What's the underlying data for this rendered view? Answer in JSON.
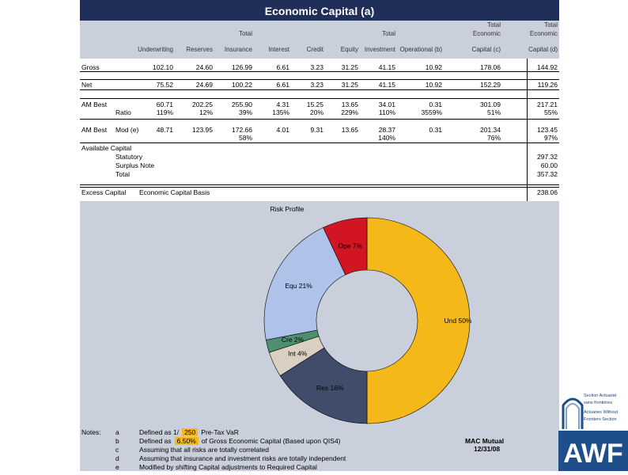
{
  "title": "Economic Capital (a)",
  "columns": [
    {
      "id": "und",
      "top1": "",
      "top2": "",
      "label": "Underwriting"
    },
    {
      "id": "res",
      "top1": "",
      "top2": "",
      "label": "Reserves"
    },
    {
      "id": "ins",
      "top1": "",
      "top2": "Total",
      "label": "Insurance"
    },
    {
      "id": "int",
      "top1": "",
      "top2": "",
      "label": "Interest"
    },
    {
      "id": "cre",
      "top1": "",
      "top2": "",
      "label": "Credit"
    },
    {
      "id": "equ",
      "top1": "",
      "top2": "",
      "label": "Equity"
    },
    {
      "id": "inv",
      "top1": "",
      "top2": "Total",
      "label": "Investment"
    },
    {
      "id": "ope",
      "top1": "",
      "top2": "",
      "label": "Operational (b)"
    },
    {
      "id": "tec",
      "top1": "Total",
      "top2": "Economic",
      "label": "Capital (c)"
    },
    {
      "id": "ted",
      "top1": "Total",
      "top2": "Economic",
      "label": "Capital (d)"
    }
  ],
  "rows": {
    "gross": {
      "label": "Gross",
      "values": [
        "102.10",
        "24.60",
        "126.99",
        "6.61",
        "3.23",
        "31.25",
        "41.15",
        "10.92",
        "178.06",
        "144.92"
      ]
    },
    "net": {
      "label": "Net",
      "values": [
        "75.52",
        "24.69",
        "100.22",
        "6.61",
        "3.23",
        "31.25",
        "41.15",
        "10.92",
        "152.29",
        "119.26"
      ]
    },
    "am_best": {
      "label": "AM Best",
      "values": [
        "60.71",
        "202.25",
        "255.90",
        "4.31",
        "15.25",
        "13.65",
        "34.01",
        "0.31",
        "301.09",
        "217.21"
      ]
    },
    "ratio": {
      "label": "Ratio",
      "values": [
        "119%",
        "12%",
        "39%",
        "135%",
        "20%",
        "229%",
        "110%",
        "3559%",
        "51%",
        "55%"
      ]
    },
    "am_best_mod": {
      "label": "AM Best",
      "sublabel": "Mod (e)",
      "values": [
        "48.71",
        "123.95",
        "172.66",
        "4.01",
        "9.31",
        "13.65",
        "28.37",
        "0.31",
        "201.34",
        "123.45"
      ]
    },
    "mod_pct": {
      "values": [
        "",
        "",
        "58%",
        "",
        "",
        "",
        "140%",
        "",
        "76%",
        "97%"
      ]
    }
  },
  "available": {
    "heading": "Available Capital",
    "items": [
      {
        "label": "Statutory",
        "value": "297.32"
      },
      {
        "label": "Surplus Note",
        "value": "60.00"
      },
      {
        "label": "Total",
        "value": "357.32"
      }
    ]
  },
  "excess": {
    "label": "Excess Capital",
    "basis": "Economic Capital Basis",
    "value": "238.06"
  },
  "chart_data": {
    "type": "pie",
    "title": "Risk Profile",
    "donut": true,
    "categories": [
      "Und",
      "Res",
      "Int",
      "Cre",
      "Equ",
      "Ope"
    ],
    "values": [
      50,
      16,
      4,
      2,
      21,
      7
    ],
    "labels": [
      "Und 50%",
      "Res 16%",
      "Int 4%",
      "Cre 2%",
      "Equ 21%",
      "Ope 7%"
    ],
    "colors": [
      "#f4b918",
      "#3f4d6b",
      "#d9d0c2",
      "#4f8f6f",
      "#aec2ea",
      "#d11522"
    ]
  },
  "notes": {
    "heading": "Notes:",
    "items": [
      {
        "key": "a",
        "pre": "Defined as 1/",
        "hl": "250",
        "post": "Pre-Tax VaR"
      },
      {
        "key": "b",
        "pre": "Defined as",
        "hl": "6.50%",
        "post": "of Gross Economic Capital (Based upon QIS4)"
      },
      {
        "key": "c",
        "pre": "Assuming that all risks are totally correlated",
        "hl": "",
        "post": ""
      },
      {
        "key": "d",
        "pre": "Assuming that insurance and investment risks are totally independent",
        "hl": "",
        "post": ""
      },
      {
        "key": "e",
        "pre": "Modified by shifting Capital adjustments to Required Capital",
        "hl": "",
        "post": ""
      }
    ]
  },
  "company": {
    "name": "MAC Mutual",
    "date": "12/31/08"
  },
  "logo": {
    "line1": "Section Actuariat",
    "line2": "sans frontières",
    "line3": "Actuaries Without",
    "line4": "Frontiers Section",
    "mark": "AWF"
  }
}
